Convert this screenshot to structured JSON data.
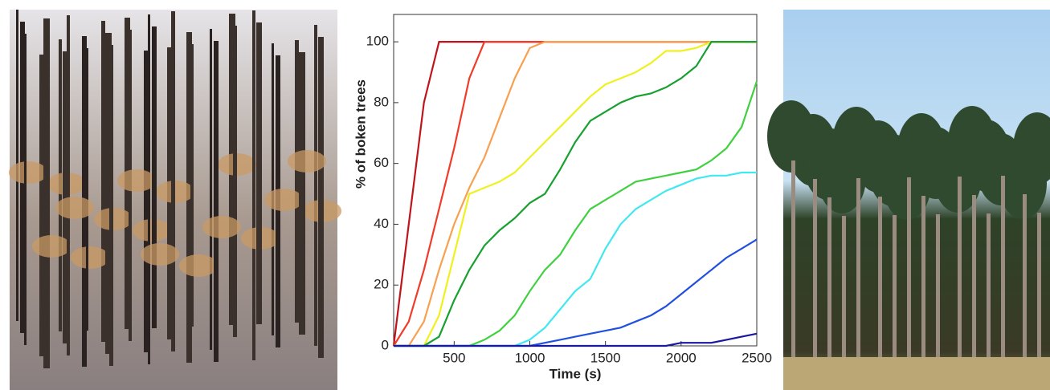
{
  "chart_data": {
    "type": "line",
    "x_label": "Time (s)",
    "y_label": "% of boken trees",
    "x": [
      100,
      200,
      300,
      400,
      500,
      600,
      700,
      800,
      900,
      1000,
      1100,
      1200,
      1300,
      1400,
      1500,
      1600,
      1700,
      1800,
      1900,
      2000,
      2100,
      2200,
      2300,
      2400,
      2500
    ],
    "xlim": [
      100,
      2500
    ],
    "xticks": [
      500,
      1000,
      1500,
      2000,
      2500
    ],
    "ylim": [
      0,
      109
    ],
    "yticks": [
      0,
      20,
      40,
      60,
      80,
      100
    ],
    "series": [
      {
        "color": "#c0141c",
        "values": [
          0,
          40,
          80,
          100,
          100,
          100,
          100,
          100,
          100,
          100,
          100,
          100,
          100,
          100,
          100,
          100,
          100,
          100,
          100,
          100,
          100,
          100,
          100,
          100,
          100
        ]
      },
      {
        "color": "#f03c28",
        "values": [
          0,
          8,
          25,
          45,
          65,
          88,
          100,
          100,
          100,
          100,
          100,
          100,
          100,
          100,
          100,
          100,
          100,
          100,
          100,
          100,
          100,
          100,
          100,
          100,
          100
        ]
      },
      {
        "color": "#f8a050",
        "values": [
          0,
          0,
          8,
          25,
          40,
          52,
          62,
          75,
          88,
          98,
          100,
          100,
          100,
          100,
          100,
          100,
          100,
          100,
          100,
          100,
          100,
          100,
          100,
          100,
          100
        ]
      },
      {
        "color": "#f0f020",
        "values": [
          0,
          0,
          0,
          10,
          30,
          50,
          52,
          54,
          57,
          62,
          67,
          72,
          77,
          82,
          86,
          88,
          90,
          93,
          97,
          97,
          98,
          100,
          100,
          100,
          100
        ]
      },
      {
        "color": "#18a030",
        "values": [
          0,
          0,
          0,
          3,
          15,
          25,
          33,
          38,
          42,
          47,
          50,
          58,
          67,
          74,
          77,
          80,
          82,
          83,
          85,
          88,
          92,
          100,
          100,
          100,
          100
        ]
      },
      {
        "color": "#40d040",
        "values": [
          0,
          0,
          0,
          0,
          0,
          0,
          2,
          5,
          10,
          18,
          25,
          30,
          38,
          45,
          48,
          51,
          54,
          55,
          56,
          57,
          58,
          61,
          65,
          72,
          87
        ]
      },
      {
        "color": "#40e8f0",
        "values": [
          0,
          0,
          0,
          0,
          0,
          0,
          0,
          0,
          0,
          2,
          6,
          12,
          18,
          22,
          32,
          40,
          45,
          48,
          51,
          53,
          55,
          56,
          56,
          57,
          57
        ]
      },
      {
        "color": "#2050e0",
        "values": [
          0,
          0,
          0,
          0,
          0,
          0,
          0,
          0,
          0,
          0,
          1,
          2,
          3,
          4,
          5,
          6,
          8,
          10,
          13,
          17,
          21,
          25,
          29,
          32,
          35
        ]
      },
      {
        "color": "#1818a0",
        "values": [
          0,
          0,
          0,
          0,
          0,
          0,
          0,
          0,
          0,
          0,
          0,
          0,
          0,
          0,
          0,
          0,
          0,
          0,
          0,
          1,
          1,
          1,
          2,
          3,
          4
        ]
      }
    ]
  }
}
